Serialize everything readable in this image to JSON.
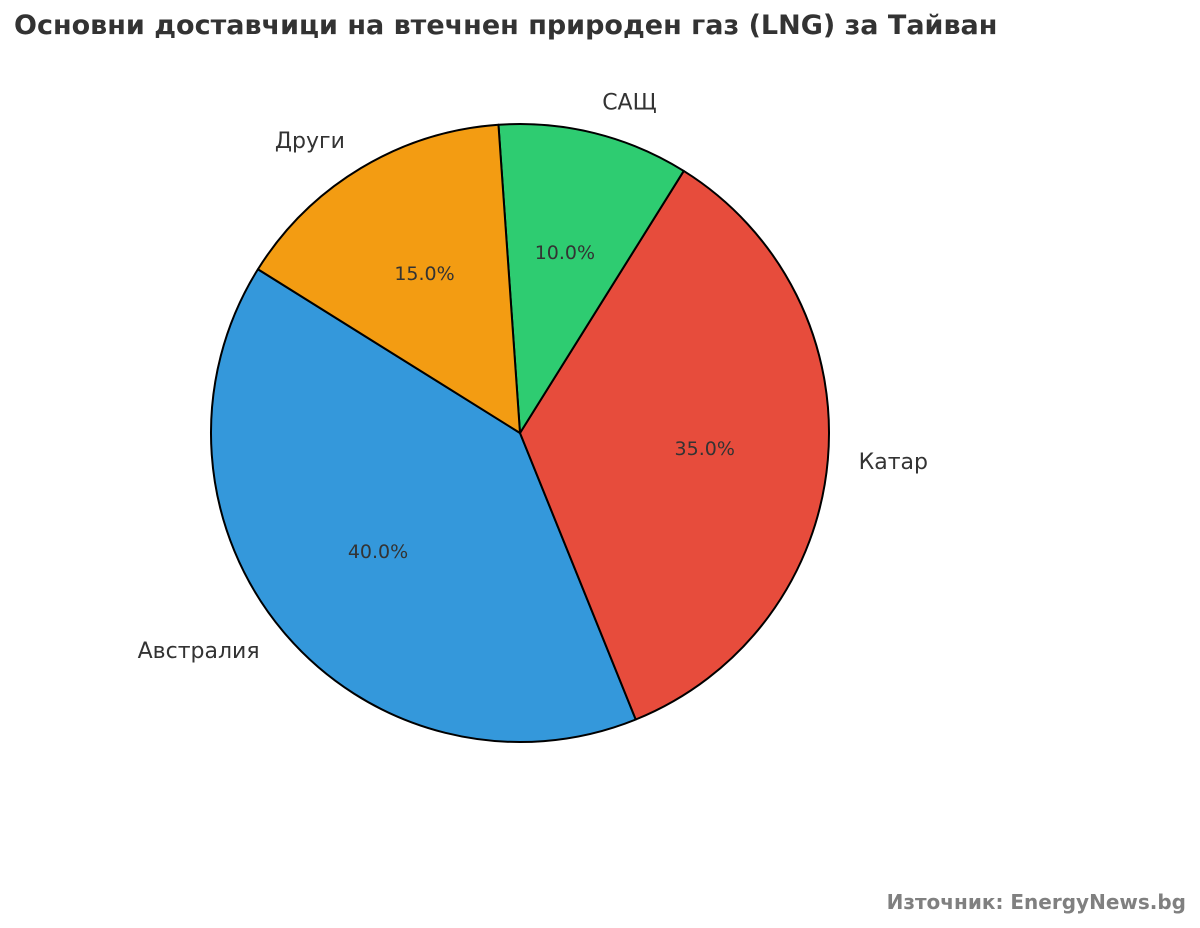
{
  "header": {
    "title": "Основни доставчици на втечнен природен газ (LNG) за Тайван"
  },
  "footer": {
    "source": "Източник: EnergyNews.bg"
  },
  "chart_data": {
    "type": "pie",
    "title": "Основни доставчици на втечнен природен газ (LNG) за Тайван",
    "slices": [
      {
        "label": "Австралия",
        "value": 40,
        "pct_label": "40.0%",
        "color": "#3498db"
      },
      {
        "label": "Катар",
        "value": 35,
        "pct_label": "35.0%",
        "color": "#e74c3c"
      },
      {
        "label": "САЩ",
        "value": 10,
        "pct_label": "10.0%",
        "color": "#2ecc71"
      },
      {
        "label": "Други",
        "value": 15,
        "pct_label": "15.0%",
        "color": "#f39c12"
      }
    ],
    "edge_color": "#000000",
    "legend": "none"
  }
}
